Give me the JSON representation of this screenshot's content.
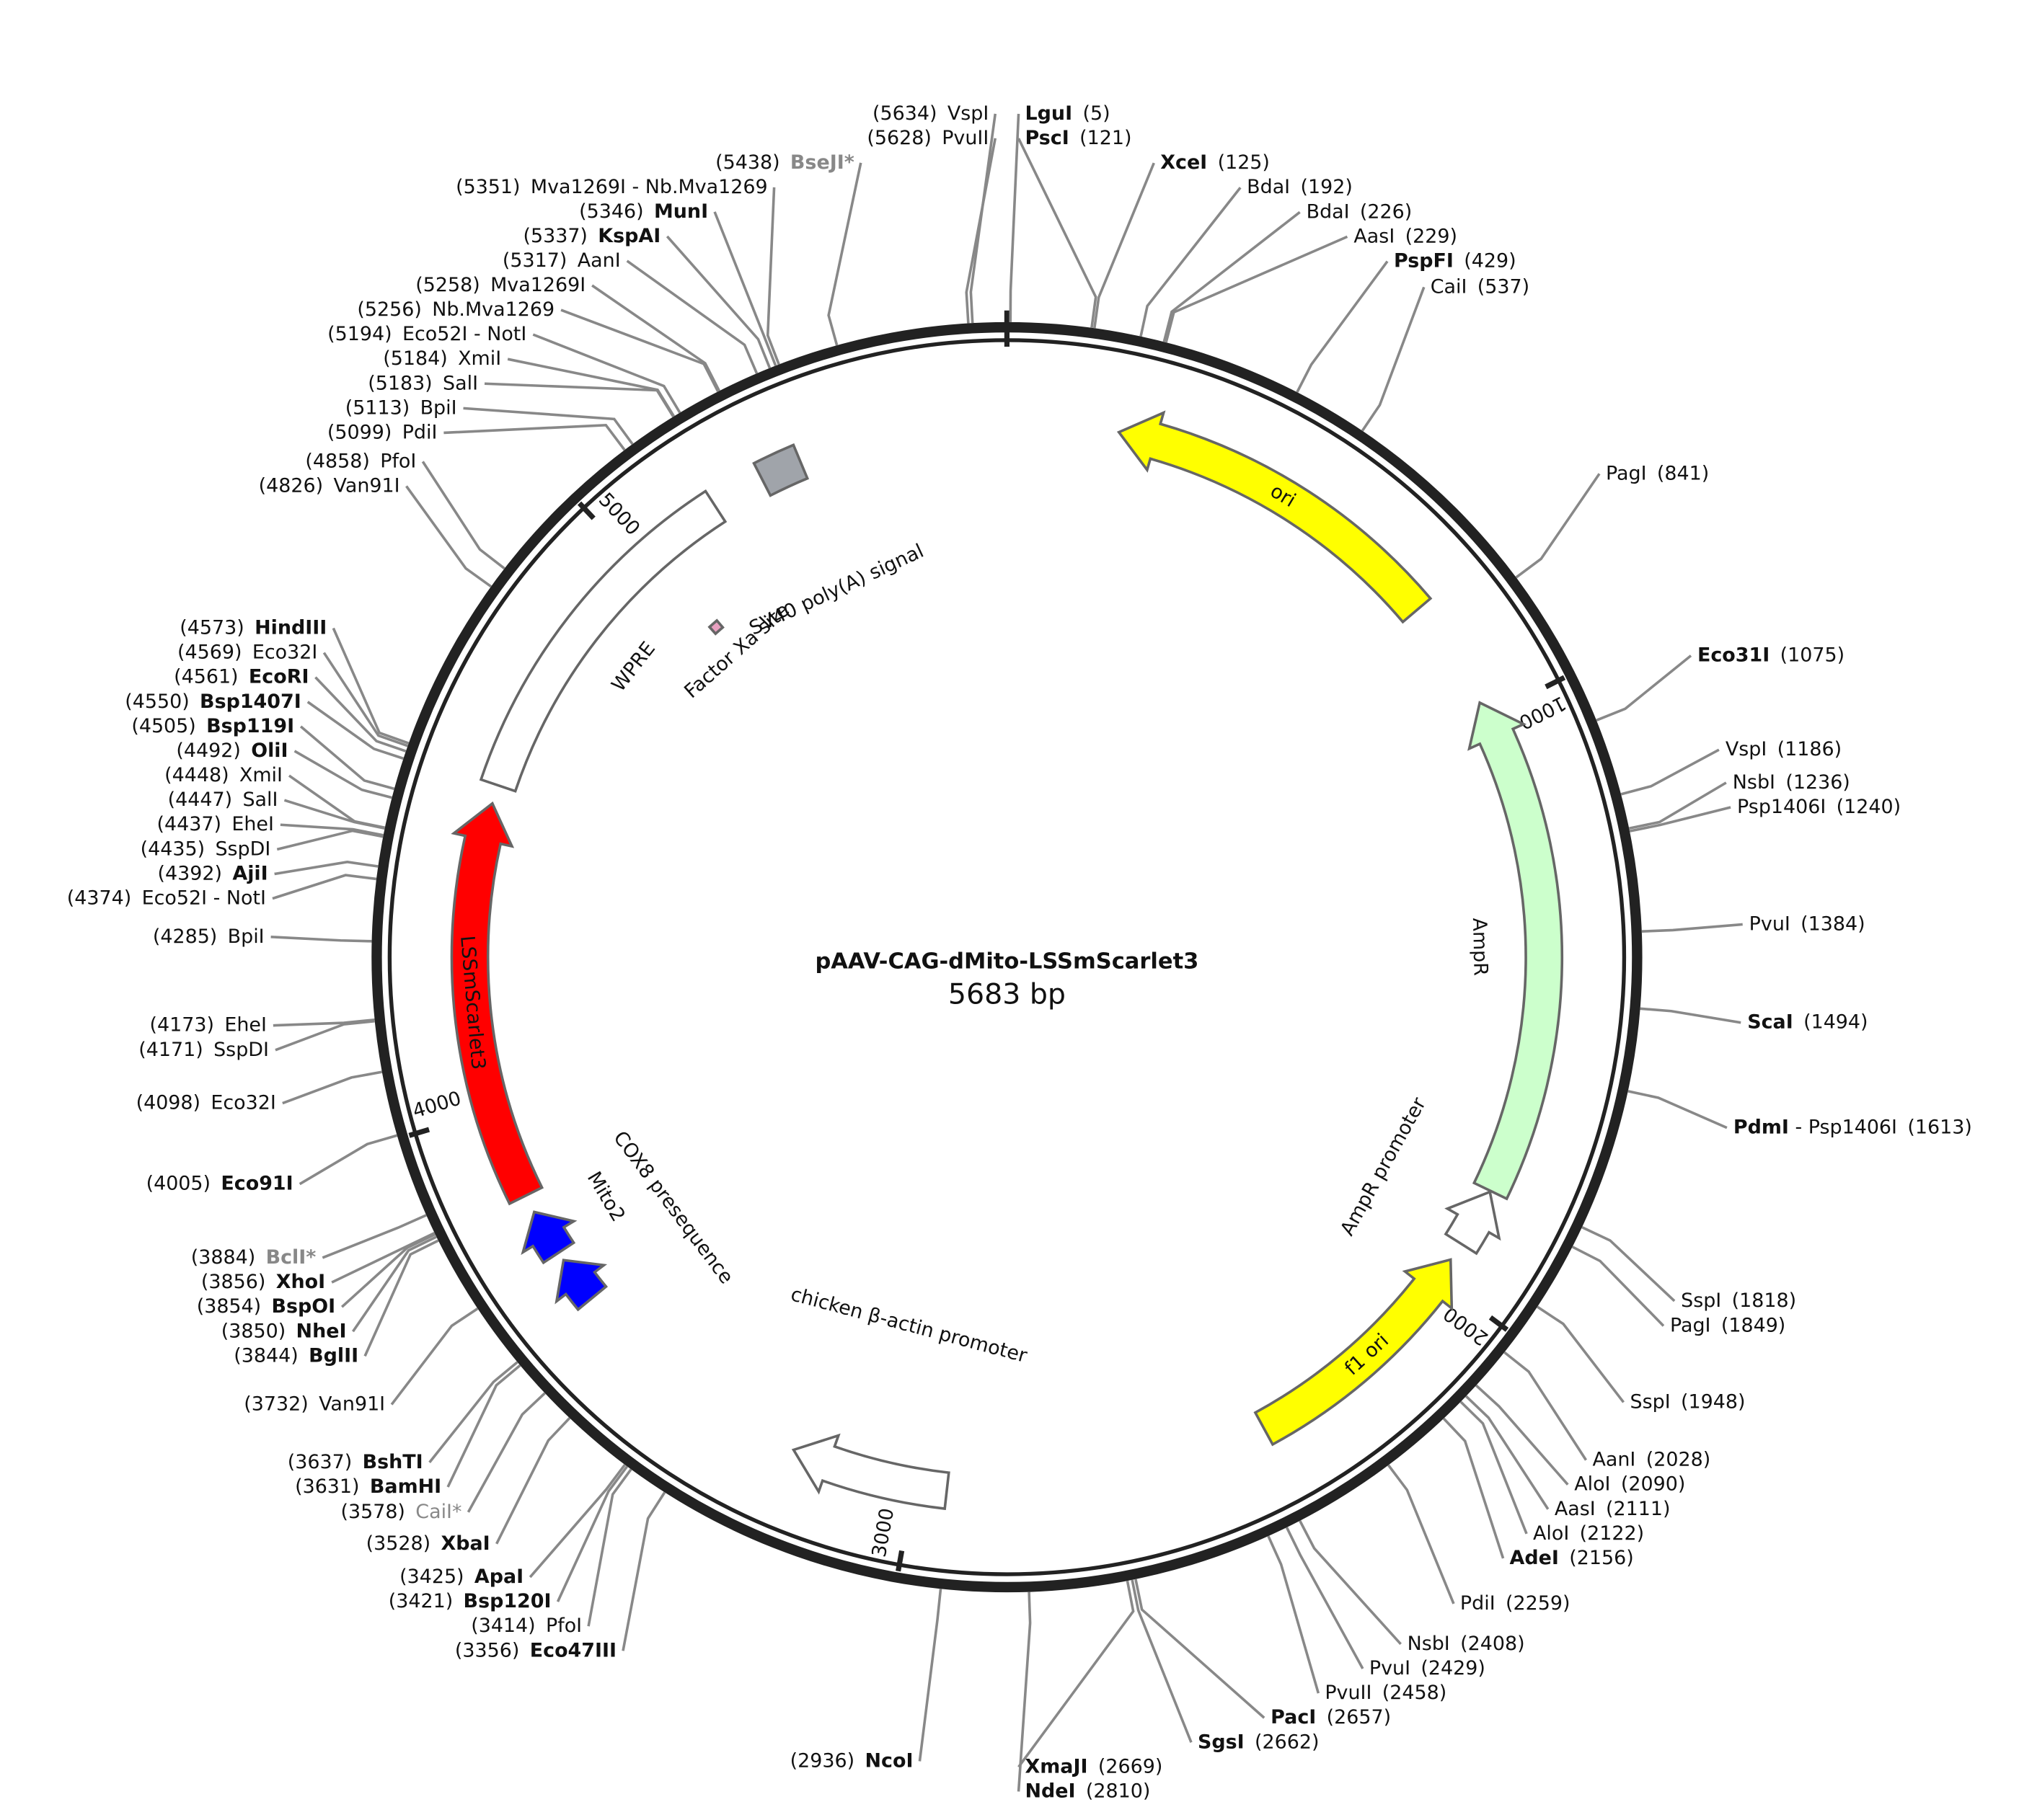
{
  "map": {
    "title": "pAAV-CAG-dMito-LSSmScarlet3",
    "length": "5683 bp",
    "ticks": [
      1000,
      2000,
      3000,
      4000,
      5000
    ],
    "features": [
      {
        "name": "ori",
        "start": 190,
        "end": 785,
        "direction": "ccw",
        "color": "#ffff00"
      },
      {
        "name": "AmpR",
        "start": 974,
        "end": 1828,
        "direction": "ccw",
        "color": "#ccffcc"
      },
      {
        "name": "AmpR promoter",
        "start": 1830,
        "end": 1930,
        "direction": "ccw",
        "color": "#ffffff"
      },
      {
        "name": "f1 ori",
        "start": 1962,
        "end": 2390,
        "direction": "ccw",
        "color": "#ffff00"
      },
      {
        "name": "chicken β-actin promoter",
        "start": 2943,
        "end": 3211,
        "direction": "cw",
        "color": "#ffffff"
      },
      {
        "name": "COX8 presequence",
        "start": 3640,
        "end": 3720,
        "direction": "cw",
        "color": "#0000ff"
      },
      {
        "name": "Mito2",
        "start": 3735,
        "end": 3815,
        "direction": "cw",
        "color": "#0000ff"
      },
      {
        "name": "LSSmScarlet3",
        "start": 3846,
        "end": 4525,
        "direction": "cw",
        "color": "#ff0000"
      },
      {
        "name": "WPRE",
        "start": 4557,
        "end": 5164,
        "direction": "none",
        "color": "#ffffff"
      },
      {
        "name": "SV40 poly(A) signal",
        "start": 5255,
        "end": 5326,
        "direction": "none",
        "color": "#a0a4aa"
      },
      {
        "name": "Factor Xa site",
        "start": 5020,
        "end": 5040,
        "direction": "none",
        "color": "#e8a0c0"
      }
    ],
    "sites": [
      {
        "name": "LguI",
        "position": "(5)",
        "bold": true
      },
      {
        "name": "PscI",
        "position": "(121)",
        "bold": true
      },
      {
        "name": "XceI",
        "position": "(125)",
        "bold": true
      },
      {
        "name": "BdaI",
        "position": "(192)"
      },
      {
        "name": "BdaI",
        "position": "(226)"
      },
      {
        "name": "AasI",
        "position": "(229)"
      },
      {
        "name": "PspFI",
        "position": "(429)",
        "bold": true
      },
      {
        "name": "CaiI",
        "position": "(537)"
      },
      {
        "name": "PagI",
        "position": "(841)"
      },
      {
        "name": "Eco31I",
        "position": "(1075)",
        "bold": true
      },
      {
        "name": "VspI",
        "position": "(1186)"
      },
      {
        "name": "NsbI",
        "position": "(1236)"
      },
      {
        "name": "Psp1406I",
        "position": "(1240)"
      },
      {
        "name": "PvuI",
        "position": "(1384)"
      },
      {
        "name": "ScaI",
        "position": "(1494)",
        "bold": true
      },
      {
        "name": "PdmI",
        "suffix": " - Psp1406I",
        "position": "(1613)",
        "bold": true
      },
      {
        "name": "SspI",
        "position": "(1818)"
      },
      {
        "name": "PagI",
        "position": "(1849)"
      },
      {
        "name": "SspI",
        "position": "(1948)"
      },
      {
        "name": "AanI",
        "position": "(2028)"
      },
      {
        "name": "AloI",
        "position": "(2090)"
      },
      {
        "name": "AasI",
        "position": "(2111)"
      },
      {
        "name": "AloI",
        "position": "(2122)"
      },
      {
        "name": "AdeI",
        "position": "(2156)",
        "bold": true
      },
      {
        "name": "PdiI",
        "position": "(2259)"
      },
      {
        "name": "NsbI",
        "position": "(2408)"
      },
      {
        "name": "PvuI",
        "position": "(2429)"
      },
      {
        "name": "PvuII",
        "position": "(2458)"
      },
      {
        "name": "PacI",
        "position": "(2657)",
        "bold": true
      },
      {
        "name": "SgsI",
        "position": "(2662)",
        "bold": true
      },
      {
        "name": "XmaJI",
        "position": "(2669)",
        "bold": true
      },
      {
        "name": "NdeI",
        "position": "(2810)",
        "bold": true
      },
      {
        "name": "NcoI",
        "position": "(2936)",
        "bold": true
      },
      {
        "name": "Eco47III",
        "position": "(3356)",
        "bold": true
      },
      {
        "name": "PfoI",
        "position": "(3414)"
      },
      {
        "name": "Bsp120I",
        "position": "(3421)",
        "bold": true
      },
      {
        "name": "ApaI",
        "position": "(3425)",
        "bold": true
      },
      {
        "name": "XbaI",
        "position": "(3528)",
        "bold": true
      },
      {
        "name": "CaiI*",
        "position": "(3578)",
        "muted": true
      },
      {
        "name": "BamHI",
        "position": "(3631)",
        "bold": true
      },
      {
        "name": "BshTI",
        "position": "(3637)",
        "bold": true
      },
      {
        "name": "Van91I",
        "position": "(3732)"
      },
      {
        "name": "BglII",
        "position": "(3844)",
        "bold": true
      },
      {
        "name": "NheI",
        "position": "(3850)",
        "bold": true
      },
      {
        "name": "BspOI",
        "position": "(3854)",
        "bold": true
      },
      {
        "name": "XhoI",
        "position": "(3856)",
        "bold": true
      },
      {
        "name": "BclI*",
        "position": "(3884)",
        "bold": true,
        "muted": true
      },
      {
        "name": "Eco91I",
        "position": "(4005)",
        "bold": true
      },
      {
        "name": "Eco32I",
        "position": "(4098)"
      },
      {
        "name": "SspDI",
        "position": "(4171)"
      },
      {
        "name": "EheI",
        "position": "(4173)"
      },
      {
        "name": "BpiI",
        "position": "(4285)"
      },
      {
        "name": "Eco52I - NotI",
        "position": "(4374)"
      },
      {
        "name": "AjiI",
        "position": "(4392)",
        "bold": true
      },
      {
        "name": "SspDI",
        "position": "(4435)"
      },
      {
        "name": "EheI",
        "position": "(4437)"
      },
      {
        "name": "SalI",
        "position": "(4447)"
      },
      {
        "name": "XmiI",
        "position": "(4448)"
      },
      {
        "name": "OliI",
        "position": "(4492)",
        "bold": true
      },
      {
        "name": "Bsp119I",
        "position": "(4505)",
        "bold": true
      },
      {
        "name": "Bsp1407I",
        "position": "(4550)",
        "bold": true
      },
      {
        "name": "EcoRI",
        "position": "(4561)",
        "bold": true
      },
      {
        "name": "Eco32I",
        "position": "(4569)"
      },
      {
        "name": "HindIII",
        "position": "(4573)",
        "bold": true
      },
      {
        "name": "Van91I",
        "position": "(4826)"
      },
      {
        "name": "PfoI",
        "position": "(4858)"
      },
      {
        "name": "PdiI",
        "position": "(5099)"
      },
      {
        "name": "BpiI",
        "position": "(5113)"
      },
      {
        "name": "SalI",
        "position": "(5183)"
      },
      {
        "name": "XmiI",
        "position": "(5184)"
      },
      {
        "name": "Eco52I - NotI",
        "position": "(5194)"
      },
      {
        "name": "Nb.Mva1269",
        "position": "(5256)"
      },
      {
        "name": "Mva1269I",
        "position": "(5258)"
      },
      {
        "name": "AanI",
        "position": "(5317)"
      },
      {
        "name": "KspAI",
        "position": "(5337)",
        "bold": true
      },
      {
        "name": "MunI",
        "position": "(5346)",
        "bold": true
      },
      {
        "name": "Mva1269I - Nb.Mva1269",
        "position": "(5351)"
      },
      {
        "name": "BseJI*",
        "position": "(5438)",
        "bold": true,
        "muted": true
      },
      {
        "name": "PvuII",
        "position": "(5628)"
      },
      {
        "name": "VspI",
        "position": "(5634)"
      }
    ]
  }
}
